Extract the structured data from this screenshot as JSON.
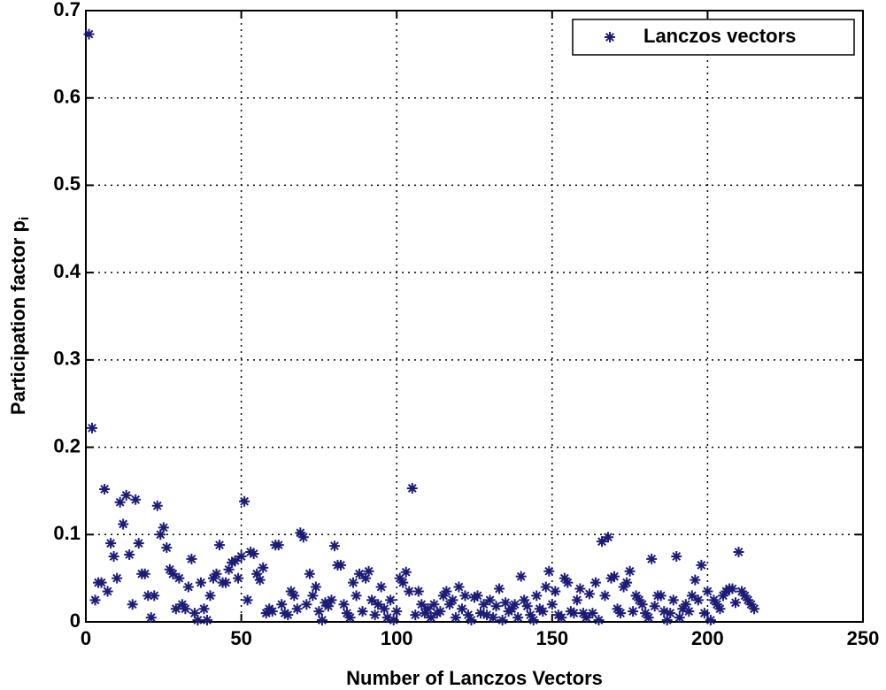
{
  "chart_data": {
    "type": "scatter",
    "x_label": "Number of Lanczos Vectors",
    "y_label": "Participation factor p",
    "y_label_subscript": "i",
    "xlim": [
      0,
      250
    ],
    "xticks": [
      0,
      50,
      100,
      150,
      200,
      250
    ],
    "ylim": [
      0,
      0.7
    ],
    "yticks": [
      0,
      0.1,
      0.2,
      0.3,
      0.4,
      0.5,
      0.6,
      0.7
    ],
    "grid": true,
    "legend_position": "upper-right",
    "x": [
      1,
      2,
      3,
      4,
      5,
      6,
      7,
      8,
      9,
      10,
      11,
      12,
      13,
      14,
      15,
      16,
      17,
      18,
      19,
      20,
      21,
      22,
      23,
      24,
      25,
      26,
      27,
      28,
      29,
      30,
      31,
      32,
      33,
      34,
      35,
      36,
      37,
      38,
      39,
      40,
      41,
      42,
      43,
      44,
      45,
      46,
      47,
      48,
      49,
      50,
      51,
      52,
      53,
      54,
      55,
      56,
      57,
      58,
      59,
      60,
      61,
      62,
      63,
      64,
      65,
      66,
      67,
      68,
      69,
      70,
      71,
      72,
      73,
      74,
      75,
      76,
      77,
      78,
      79,
      80,
      81,
      82,
      83,
      84,
      85,
      86,
      87,
      88,
      89,
      90,
      91,
      92,
      93,
      94,
      95,
      96,
      97,
      98,
      99,
      100,
      101,
      102,
      103,
      104,
      105,
      106,
      107,
      108,
      109,
      110,
      111,
      112,
      113,
      114,
      115,
      116,
      117,
      118,
      119,
      120,
      121,
      122,
      123,
      124,
      125,
      126,
      127,
      128,
      129,
      130,
      131,
      132,
      133,
      134,
      135,
      136,
      137,
      138,
      139,
      140,
      141,
      142,
      143,
      144,
      145,
      146,
      147,
      148,
      149,
      150,
      151,
      152,
      153,
      154,
      155,
      156,
      157,
      158,
      159,
      160,
      161,
      162,
      163,
      164,
      165,
      166,
      167,
      168,
      169,
      170,
      171,
      172,
      173,
      174,
      175,
      176,
      177,
      178,
      179,
      180,
      181,
      182,
      183,
      184,
      185,
      186,
      187,
      188,
      189,
      190,
      191,
      192,
      193,
      194,
      195,
      196,
      197,
      198,
      199,
      200,
      201,
      202,
      203,
      204,
      205,
      206,
      207,
      208,
      209,
      210,
      211,
      212,
      213,
      214,
      215
    ],
    "series": [
      {
        "name": "Lanczos vectors",
        "color": "#1c1c78",
        "values": [
          0.673,
          0.222,
          0.025,
          0.045,
          0.045,
          0.152,
          0.035,
          0.09,
          0.075,
          0.05,
          0.137,
          0.112,
          0.145,
          0.077,
          0.02,
          0.14,
          0.09,
          0.055,
          0.055,
          0.03,
          0.005,
          0.03,
          0.133,
          0.1,
          0.108,
          0.085,
          0.06,
          0.055,
          0.015,
          0.05,
          0.02,
          0.015,
          0.04,
          0.072,
          0.01,
          0.002,
          0.045,
          0.015,
          0.002,
          0.03,
          0.05,
          0.055,
          0.088,
          0.045,
          0.045,
          0.06,
          0.068,
          0.07,
          0.05,
          0.075,
          0.138,
          0.025,
          0.08,
          0.078,
          0.055,
          0.048,
          0.062,
          0.01,
          0.015,
          0.012,
          0.088,
          0.088,
          0.02,
          0.01,
          0.008,
          0.035,
          0.03,
          0.015,
          0.102,
          0.097,
          0.02,
          0.055,
          0.03,
          0.04,
          0.012,
          0.002,
          0.022,
          0.018,
          0.025,
          0.087,
          0.065,
          0.065,
          0.02,
          0.01,
          0.005,
          0.045,
          0.03,
          0.055,
          0.012,
          0.05,
          0.058,
          0.025,
          0.008,
          0.02,
          0.04,
          0.015,
          0.005,
          0.025,
          0.002,
          0.012,
          0.05,
          0.045,
          0.057,
          0.035,
          0.153,
          0.008,
          0.035,
          0.02,
          0.01,
          0.015,
          0.005,
          0.02,
          0.01,
          0.012,
          0.03,
          0.035,
          0.02,
          0.025,
          0.005,
          0.04,
          0.015,
          0.03,
          0.008,
          0.002,
          0.028,
          0.03,
          0.01,
          0.02,
          0.008,
          0.025,
          0.005,
          0.018,
          0.038,
          0.002,
          0.022,
          0.012,
          0.015,
          0.02,
          0.005,
          0.052,
          0.025,
          0.018,
          0.008,
          0.002,
          0.03,
          0.015,
          0.012,
          0.04,
          0.058,
          0.02,
          0.035,
          0.008,
          0.005,
          0.05,
          0.045,
          0.012,
          0.01,
          0.025,
          0.038,
          0.01,
          0.005,
          0.032,
          0.01,
          0.045,
          0.002,
          0.092,
          0.03,
          0.097,
          0.05,
          0.052,
          0.015,
          0.01,
          0.04,
          0.045,
          0.058,
          0.012,
          0.03,
          0.025,
          0.02,
          0.01,
          0.005,
          0.072,
          0.018,
          0.03,
          0.03,
          0.012,
          0.002,
          0.01,
          0.025,
          0.075,
          0.005,
          0.015,
          0.02,
          0.012,
          0.03,
          0.048,
          0.025,
          0.065,
          0.01,
          0.035,
          0.002,
          0.025,
          0.02,
          0.015,
          0.03,
          0.035,
          0.038,
          0.038,
          0.022,
          0.08,
          0.035,
          0.03,
          0.025,
          0.02,
          0.015
        ]
      }
    ]
  }
}
